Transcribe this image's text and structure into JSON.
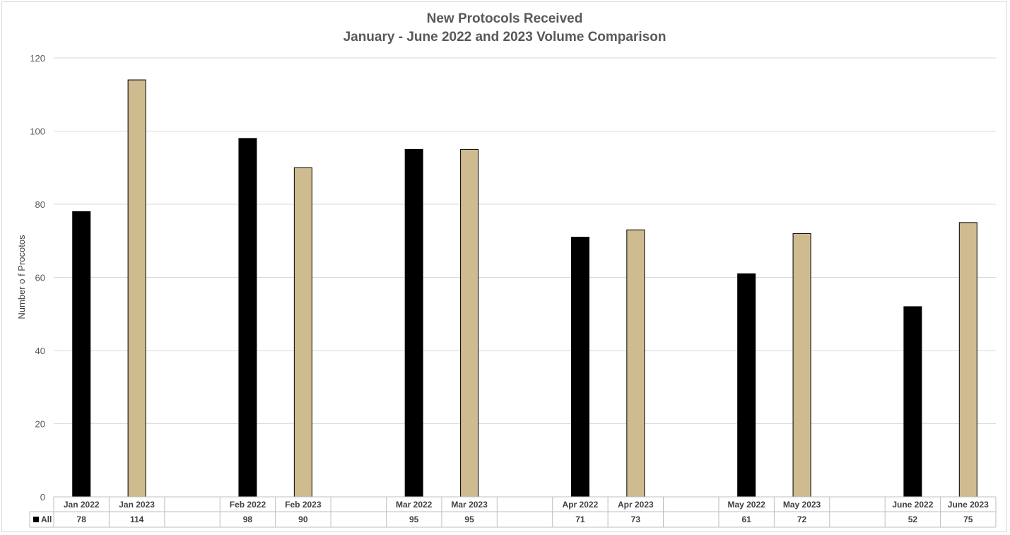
{
  "chart_data": {
    "type": "bar",
    "title": "New Protocols Received",
    "subtitle": "January - June 2022 and 2023 Volume Comparison",
    "ylabel": "Number o f Procotos",
    "xlabel": "",
    "ylim": [
      0,
      120
    ],
    "yticks": [
      0,
      20,
      40,
      60,
      80,
      100,
      120
    ],
    "grid": true,
    "legend": "data-table-left",
    "series_name": "All",
    "categories": [
      "Jan 2022",
      "Jan 2023",
      "",
      "Feb 2022",
      "Feb 2023",
      "",
      "Mar 2022",
      "Mar 2023",
      "",
      "Apr 2022",
      "Apr 2023",
      "",
      "May 2022",
      "May 2023",
      "",
      "June 2022",
      "June 2023"
    ],
    "values": [
      78,
      114,
      null,
      98,
      90,
      null,
      95,
      95,
      null,
      71,
      73,
      null,
      61,
      72,
      null,
      52,
      75
    ],
    "colors": {
      "year_2022": "#000000",
      "year_2023": "#cfbb90",
      "bar_outline": "#000000",
      "grid": "#d9d9d9",
      "table_border": "#bfbfbf"
    }
  }
}
